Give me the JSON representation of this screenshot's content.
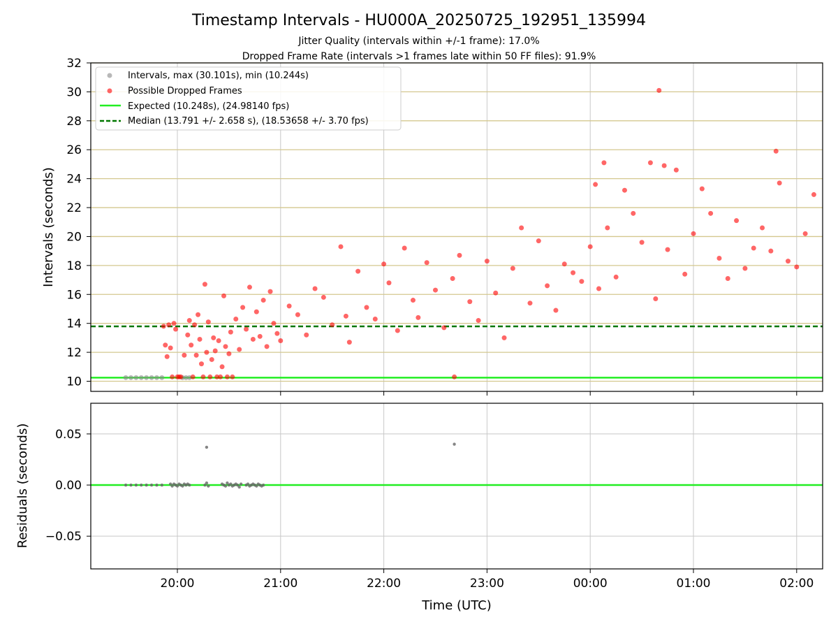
{
  "figure": {
    "title": "Timestamp Intervals - HU000A_20250725_192951_135994",
    "subtitle1": "Jitter Quality (intervals within +/-1 frame): 17.0%",
    "subtitle2": "Dropped Frame Rate (intervals >1 frames late within 50 FF files): 91.9%"
  },
  "colors": {
    "intervals": "#888888",
    "dropped": "#ff0000",
    "expected": "#22ee22",
    "median": "#007700",
    "hgrid": "#d4c88f",
    "grid": "#c8c8c8",
    "residuals": "#666666"
  },
  "chart_data": [
    {
      "type": "scatter",
      "xlabel": "",
      "ylabel": "Intervals (seconds)",
      "x_ticks": [
        "20:00",
        "21:00",
        "22:00",
        "23:00",
        "00:00",
        "01:00",
        "02:00"
      ],
      "ylim": [
        9.3,
        32
      ],
      "y_ticks": [
        10,
        12,
        14,
        16,
        18,
        20,
        22,
        24,
        26,
        28,
        30,
        32
      ],
      "legend_position": "top-left",
      "legend": [
        "Intervals, max (30.101s), min (10.244s)",
        "Possible Dropped Frames",
        "Expected (10.248s), (24.98140 fps)",
        "Median (13.791 +/- 2.658 s), (18.53658 +/- 3.70 fps)"
      ],
      "expected_value": 10.248,
      "median_value": 13.791,
      "series": [
        {
          "name": "Intervals, max (30.101s), min (10.244s)",
          "x": [
            "19:30",
            "19:33",
            "19:36",
            "19:39",
            "19:42",
            "19:45",
            "19:48",
            "19:51",
            "20:03",
            "20:05",
            "20:07"
          ],
          "y": [
            10.25,
            10.25,
            10.25,
            10.25,
            10.25,
            10.25,
            10.25,
            10.25,
            10.25,
            10.25,
            10.25
          ]
        },
        {
          "name": "Possible Dropped Frames",
          "x": [
            "19:52",
            "19:53",
            "19:54",
            "19:55",
            "19:56",
            "19:57",
            "19:58",
            "19:59",
            "20:00",
            "20:01",
            "20:02",
            "20:04",
            "20:06",
            "20:07",
            "20:08",
            "20:09",
            "20:10",
            "20:11",
            "20:12",
            "20:13",
            "20:14",
            "20:15",
            "20:16",
            "20:17",
            "20:18",
            "20:19",
            "20:20",
            "20:21",
            "20:22",
            "20:23",
            "20:24",
            "20:25",
            "20:26",
            "20:27",
            "20:28",
            "20:29",
            "20:30",
            "20:31",
            "20:32",
            "20:34",
            "20:36",
            "20:38",
            "20:40",
            "20:42",
            "20:44",
            "20:46",
            "20:48",
            "20:50",
            "20:52",
            "20:54",
            "20:56",
            "20:58",
            "21:00",
            "21:05",
            "21:10",
            "21:15",
            "21:20",
            "21:25",
            "21:30",
            "21:35",
            "21:38",
            "21:40",
            "21:45",
            "21:50",
            "21:55",
            "22:00",
            "22:03",
            "22:08",
            "22:12",
            "22:17",
            "22:20",
            "22:25",
            "22:30",
            "22:35",
            "22:40",
            "22:41",
            "22:44",
            "22:50",
            "22:55",
            "23:00",
            "23:05",
            "23:10",
            "23:15",
            "23:20",
            "23:25",
            "23:30",
            "23:35",
            "23:40",
            "23:45",
            "23:50",
            "23:55",
            "00:00",
            "00:03",
            "00:05",
            "00:08",
            "00:10",
            "00:15",
            "00:20",
            "00:25",
            "00:30",
            "00:35",
            "00:38",
            "00:40",
            "00:43",
            "00:45",
            "00:50",
            "00:55",
            "01:00",
            "01:05",
            "01:10",
            "01:15",
            "01:20",
            "01:25",
            "01:30",
            "01:35",
            "01:40",
            "01:45",
            "01:48",
            "01:50",
            "01:55",
            "02:00",
            "02:05",
            "02:10"
          ],
          "y": [
            13.8,
            12.5,
            11.7,
            13.9,
            12.3,
            10.3,
            14.0,
            13.6,
            10.3,
            10.3,
            10.3,
            11.8,
            13.2,
            14.2,
            12.5,
            10.3,
            13.9,
            11.8,
            14.6,
            12.9,
            11.2,
            10.3,
            16.7,
            12.0,
            14.1,
            10.3,
            11.5,
            13.0,
            12.1,
            10.3,
            12.8,
            10.3,
            11.0,
            15.9,
            12.4,
            10.3,
            11.9,
            13.4,
            10.3,
            14.3,
            12.2,
            15.1,
            13.6,
            16.5,
            12.9,
            14.8,
            13.1,
            15.6,
            12.4,
            16.2,
            14.0,
            13.3,
            12.8,
            15.2,
            14.6,
            13.2,
            16.4,
            15.8,
            13.9,
            19.3,
            14.5,
            12.7,
            17.6,
            15.1,
            14.3,
            18.1,
            16.8,
            13.5,
            19.2,
            15.6,
            14.4,
            18.2,
            16.3,
            13.7,
            17.1,
            10.3,
            18.7,
            15.5,
            14.2,
            18.3,
            16.1,
            13.0,
            17.8,
            20.6,
            15.4,
            19.7,
            16.6,
            14.9,
            18.1,
            17.5,
            16.9,
            19.3,
            23.6,
            16.4,
            25.1,
            20.6,
            17.2,
            23.2,
            21.6,
            19.6,
            25.1,
            15.7,
            30.1,
            24.9,
            19.1,
            24.6,
            17.4,
            20.2,
            23.3,
            21.6,
            18.5,
            17.1,
            21.1,
            17.8,
            19.2,
            20.6,
            19.0,
            25.9,
            23.7,
            18.3,
            17.9,
            20.2,
            22.9
          ]
        }
      ]
    },
    {
      "type": "scatter",
      "xlabel": "Time (UTC)",
      "ylabel": "Residuals (seconds)",
      "x_ticks": [
        "20:00",
        "21:00",
        "22:00",
        "23:00",
        "00:00",
        "01:00",
        "02:00"
      ],
      "ylim": [
        -0.082,
        0.08
      ],
      "y_ticks": [
        "0.05",
        "0.00",
        "−0.05"
      ],
      "series": [
        {
          "name": "Residuals",
          "x": [
            "19:30",
            "19:33",
            "19:36",
            "19:39",
            "19:42",
            "19:45",
            "19:48",
            "19:51",
            "19:56",
            "19:57",
            "19:58",
            "19:59",
            "20:00",
            "20:01",
            "20:02",
            "20:03",
            "20:04",
            "20:05",
            "20:06",
            "20:07",
            "20:16",
            "20:17",
            "20:18",
            "20:26",
            "20:27",
            "20:28",
            "20:29",
            "20:30",
            "20:31",
            "20:32",
            "20:33",
            "20:34",
            "20:35",
            "20:36",
            "20:37",
            "20:40",
            "20:41",
            "20:42",
            "20:43",
            "20:44",
            "20:45",
            "20:46",
            "20:47",
            "20:48",
            "20:49",
            "20:50",
            "20:17",
            "22:41"
          ],
          "y": [
            0,
            0,
            0,
            0,
            0,
            0,
            0,
            0,
            0.001,
            -0.001,
            0.001,
            0,
            -0.001,
            0.001,
            0,
            -0.001,
            0.001,
            0,
            0.001,
            0,
            0,
            0.002,
            -0.001,
            0.001,
            0,
            -0.001,
            0.002,
            0,
            0.001,
            -0.001,
            0,
            0.001,
            0,
            -0.002,
            0.001,
            0,
            0.001,
            -0.001,
            0,
            0.001,
            0,
            -0.001,
            0.001,
            0,
            -0.001,
            0,
            0.037,
            0.04
          ]
        }
      ]
    }
  ]
}
